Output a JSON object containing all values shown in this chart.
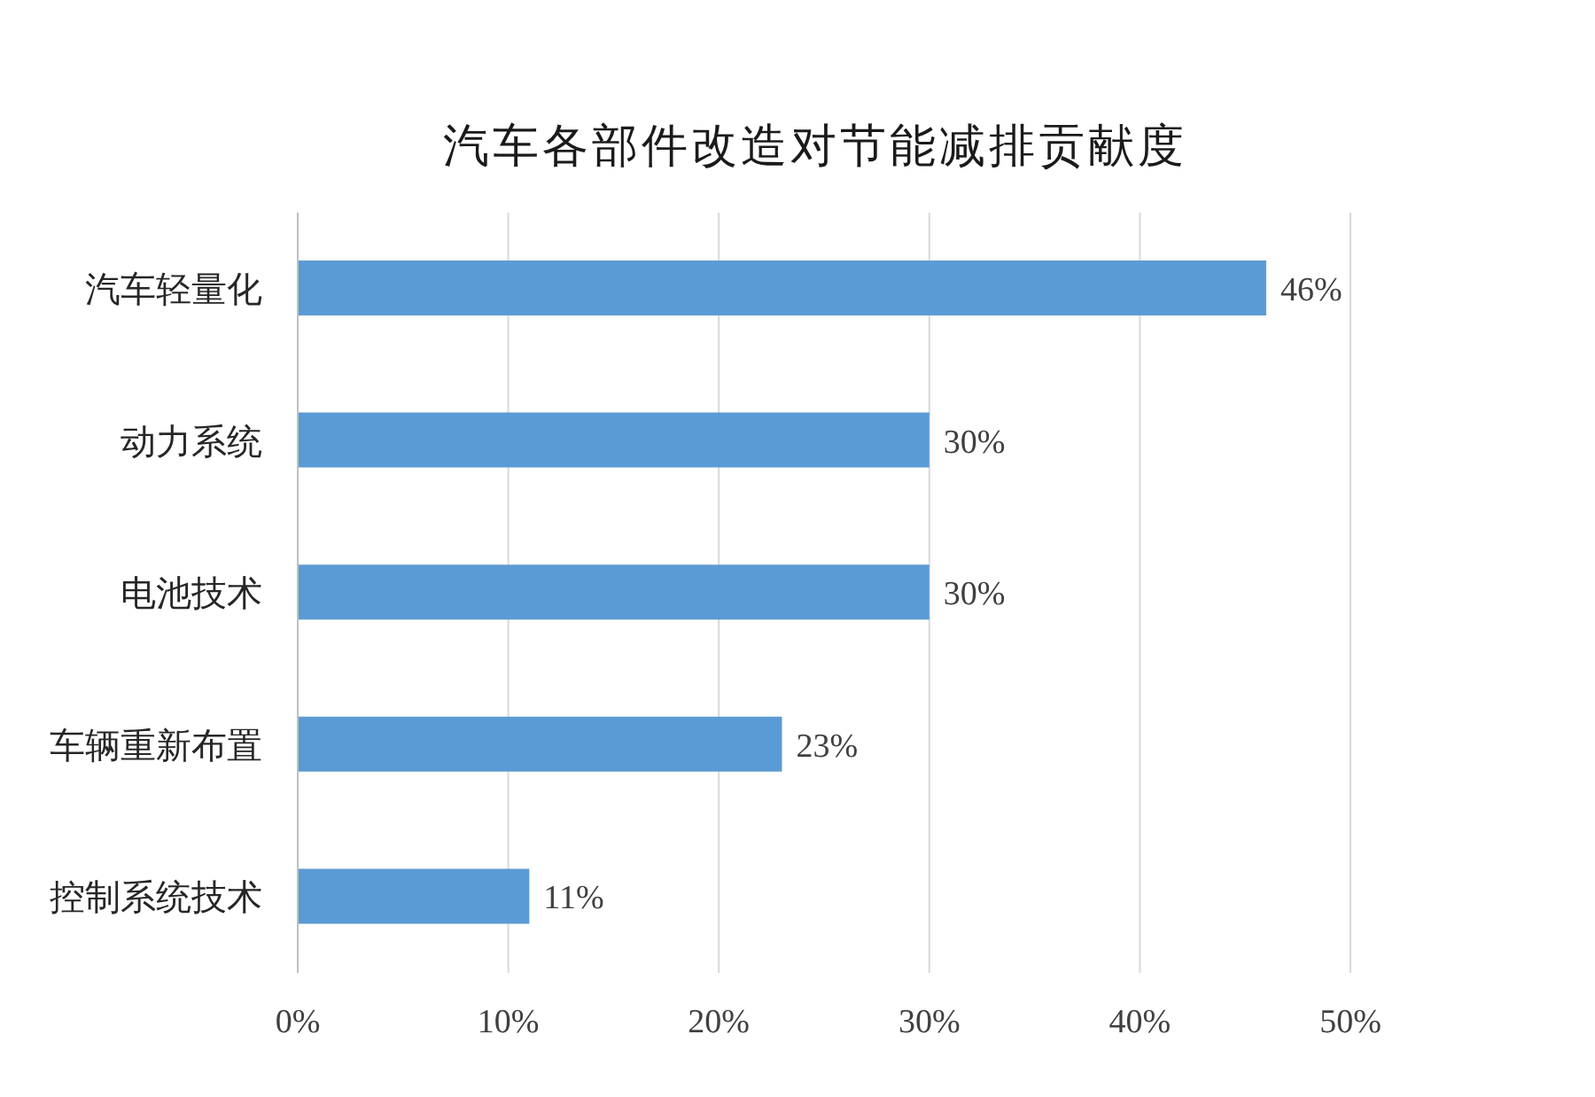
{
  "chart_data": {
    "type": "bar",
    "orientation": "horizontal",
    "title": "汽车各部件改造对节能减排贡献度",
    "categories": [
      "汽车轻量化",
      "动力系统",
      "电池技术",
      "车辆重新布置",
      "控制系统技术"
    ],
    "values": [
      46,
      30,
      30,
      23,
      11
    ],
    "value_labels": [
      "46%",
      "30%",
      "30%",
      "23%",
      "11%"
    ],
    "color": "#5b9bd5",
    "xlim": [
      0,
      50
    ],
    "xticks": [
      {
        "value": 0,
        "label": "0%"
      },
      {
        "value": 10,
        "label": "10%"
      },
      {
        "value": 20,
        "label": "20%"
      },
      {
        "value": 30,
        "label": "30%"
      },
      {
        "value": 40,
        "label": "40%"
      },
      {
        "value": 50,
        "label": "50%"
      }
    ],
    "grid": "x",
    "legend": false
  }
}
